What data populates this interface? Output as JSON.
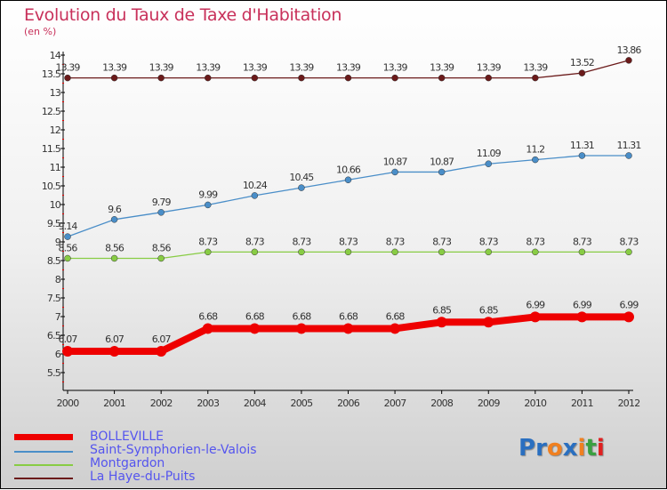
{
  "chart_data": {
    "type": "line",
    "title": "Evolution du Taux de Taxe d'Habitation",
    "ylabel": "(en %)",
    "ylim": [
      5.5,
      14
    ],
    "yticks": [
      "5.5",
      "6",
      "6.5",
      "7",
      "7.5",
      "8",
      "8.5",
      "9",
      "9.5",
      "10",
      "10.5",
      "11",
      "11.5",
      "12",
      "12.5",
      "13",
      "13.5",
      "14"
    ],
    "x": [
      "2000",
      "2001",
      "2002",
      "2003",
      "2004",
      "2005",
      "2006",
      "2007",
      "2008",
      "2009",
      "2010",
      "2011",
      "2012"
    ],
    "series": [
      {
        "name": "BOLLEVILLE",
        "color": "#ee0000",
        "values": [
          6.07,
          6.07,
          6.07,
          6.68,
          6.68,
          6.68,
          6.68,
          6.68,
          6.85,
          6.85,
          6.99,
          6.99,
          6.99
        ]
      },
      {
        "name": "Saint-Symphorien-le-Valois",
        "color": "#4a8ec8",
        "values": [
          9.14,
          9.6,
          9.79,
          9.99,
          10.24,
          10.45,
          10.66,
          10.87,
          10.87,
          11.09,
          11.2,
          11.31,
          11.31
        ]
      },
      {
        "name": "Montgardon",
        "color": "#88cc44",
        "values": [
          8.56,
          8.56,
          8.56,
          8.73,
          8.73,
          8.73,
          8.73,
          8.73,
          8.73,
          8.73,
          8.73,
          8.73,
          8.73
        ]
      },
      {
        "name": "La Haye-du-Puits",
        "color": "#6b1a1a",
        "values": [
          13.39,
          13.39,
          13.39,
          13.39,
          13.39,
          13.39,
          13.39,
          13.39,
          13.39,
          13.39,
          13.39,
          13.52,
          13.86
        ]
      }
    ]
  },
  "logo": {
    "text": "Proxiti"
  }
}
